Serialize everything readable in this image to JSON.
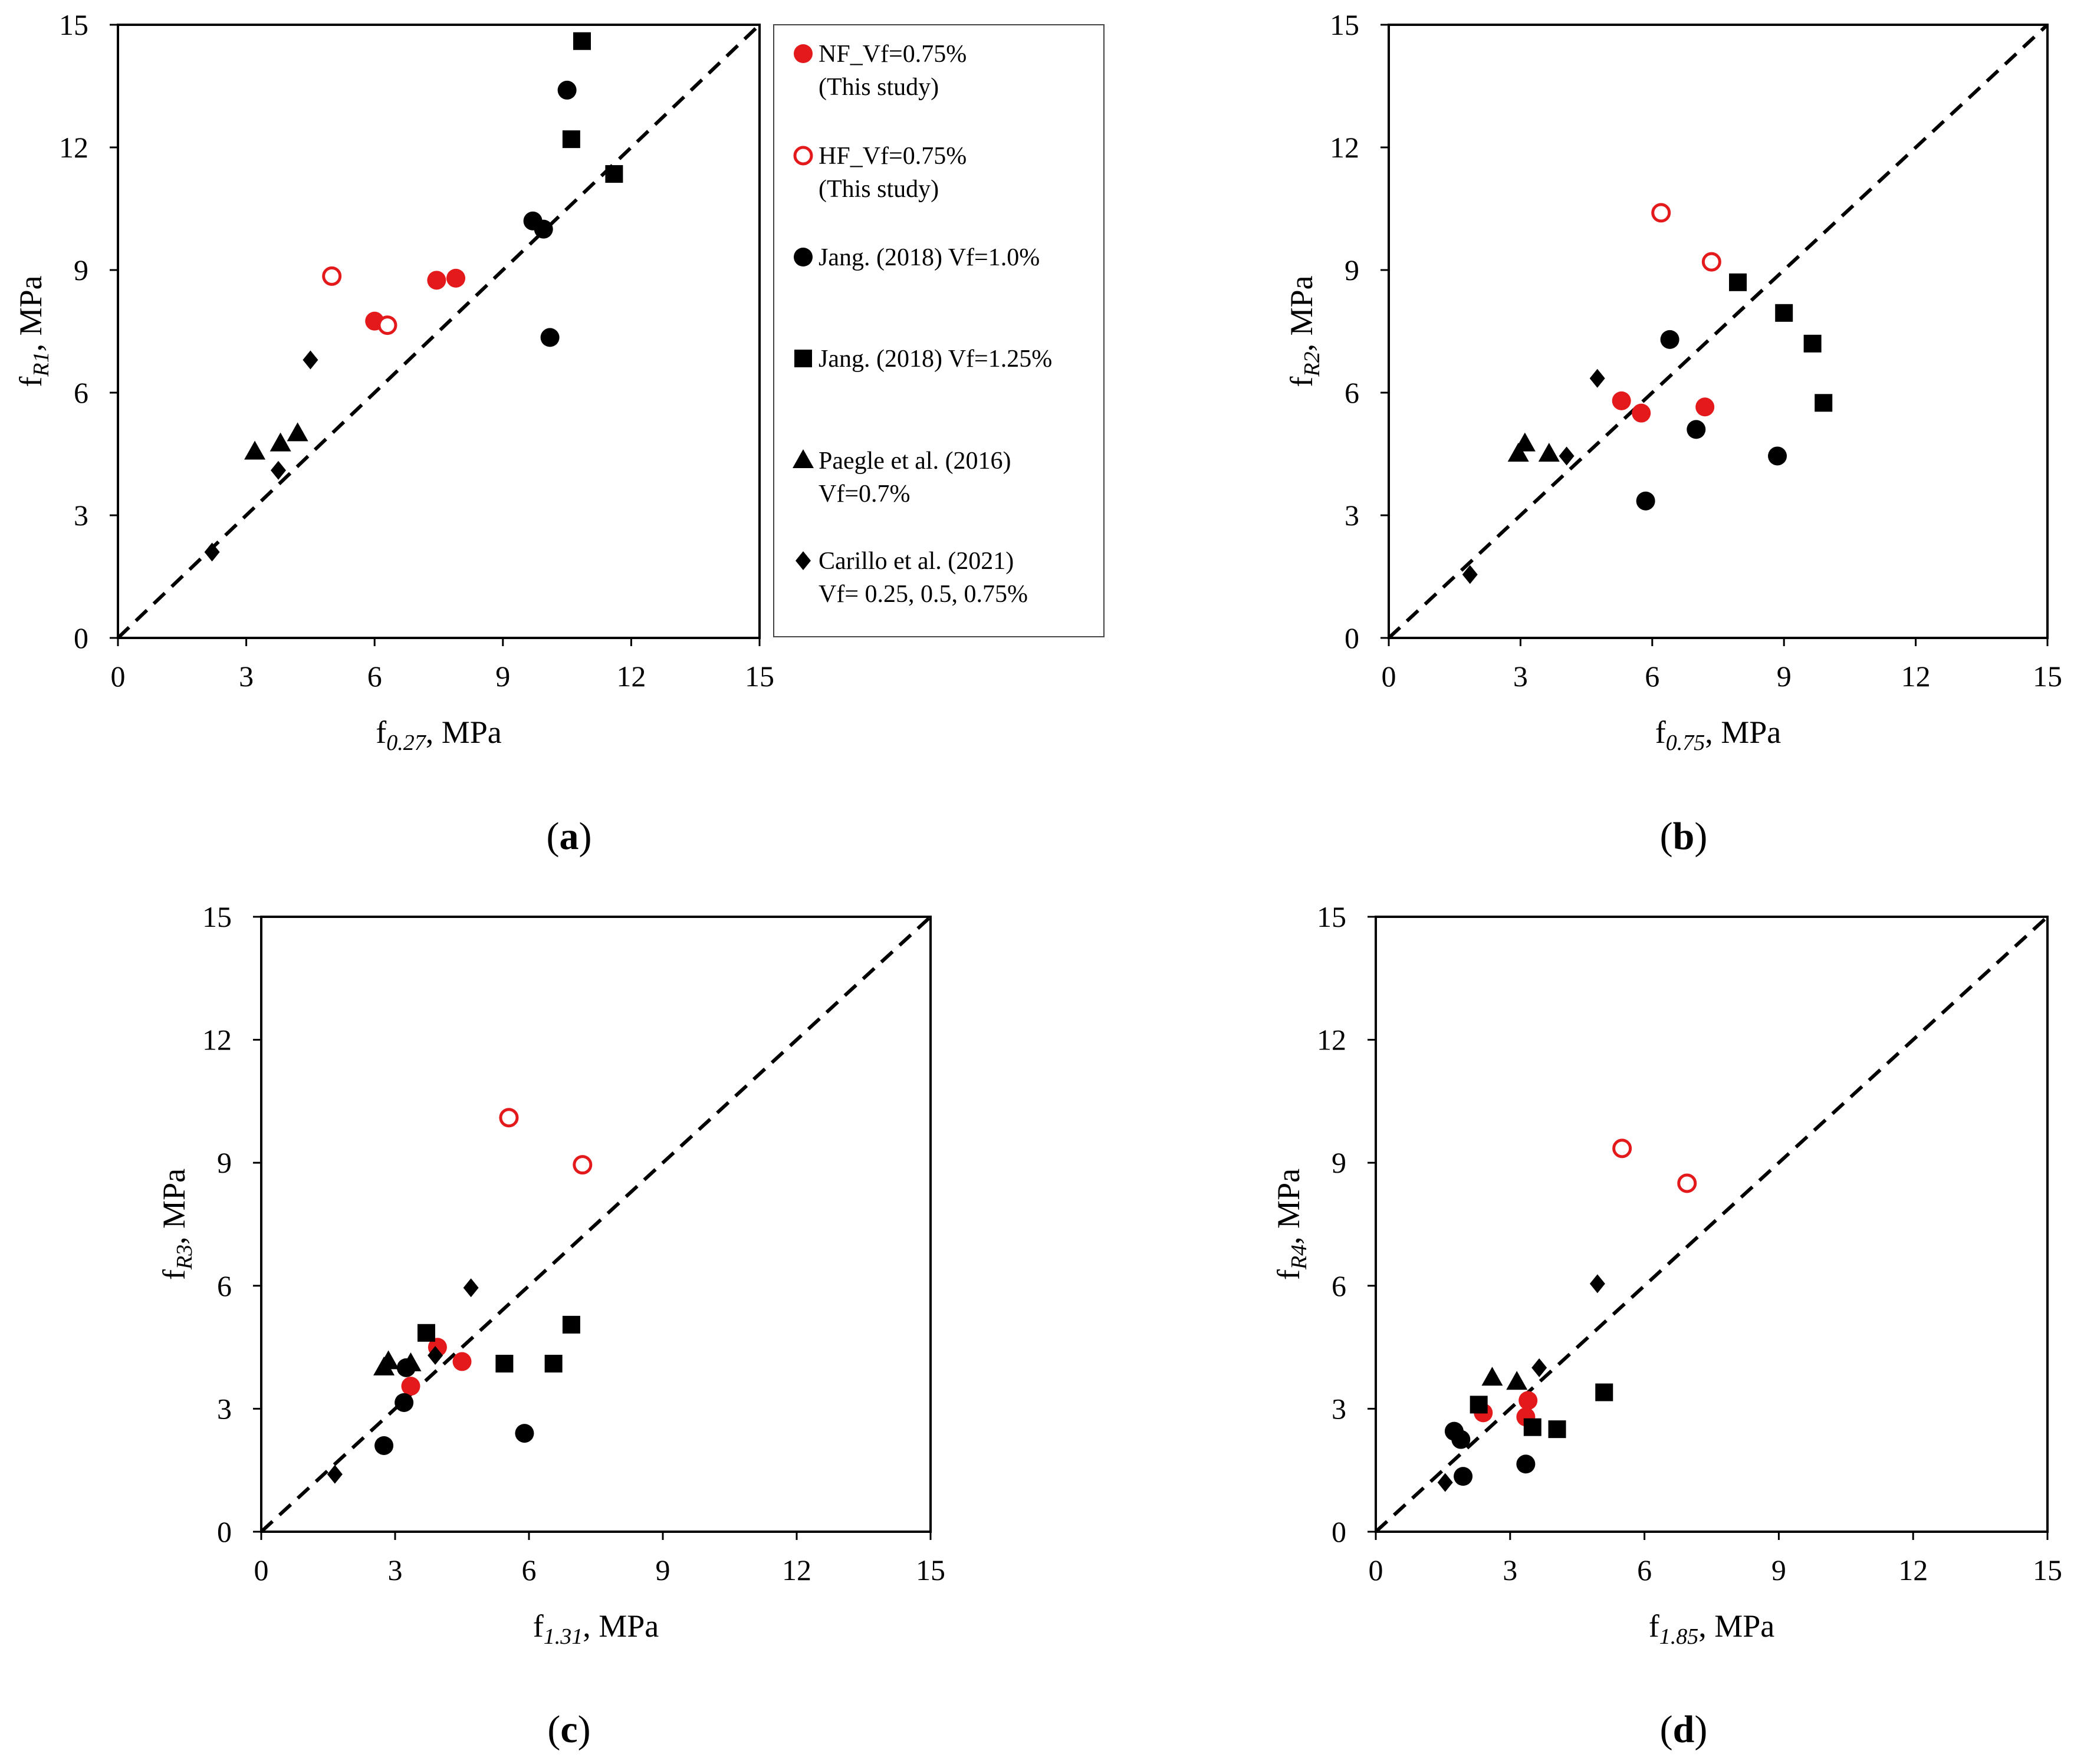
{
  "colors": {
    "nf": "#e3191b",
    "hf": "#e3191b",
    "black": "#000000"
  },
  "legend": [
    {
      "key": "nf",
      "marker": "circle-filled-red",
      "lines": [
        "NF_Vf=0.75%",
        "(This study)"
      ]
    },
    {
      "key": "hf",
      "marker": "circle-open-red",
      "lines": [
        "HF_Vf=0.75%",
        "(This study)"
      ]
    },
    {
      "key": "j10",
      "marker": "circle-filled-black",
      "lines": [
        "Jang. (2018) Vf=1.0%"
      ]
    },
    {
      "key": "j125",
      "marker": "square-filled-black",
      "lines": [
        "Jang. (2018) Vf=1.25%"
      ]
    },
    {
      "key": "pae",
      "marker": "triangle-filled-black",
      "lines": [
        "Paegle et al. (2016)",
        "Vf=0.7%"
      ]
    },
    {
      "key": "car",
      "marker": "diamond-filled-black",
      "lines": [
        "Carillo et al. (2021)",
        "Vf= 0.25, 0.5, 0.75%"
      ]
    }
  ],
  "chart_data": [
    {
      "type": "scatter",
      "panel_label": [
        "(",
        "a",
        ")"
      ],
      "xlabel": {
        "main": "f",
        "sub": "0.27",
        "rest": ", MPa"
      },
      "ylabel": {
        "main": "f",
        "sub": "R1",
        "rest": ", MPa"
      },
      "xlim": [
        0,
        15
      ],
      "ylim": [
        0,
        15
      ],
      "xticks": [
        "0",
        "3",
        "6",
        "9",
        "12",
        "15"
      ],
      "yticks": [
        "0",
        "3",
        "6",
        "9",
        "12",
        "15"
      ],
      "reference_line": "y = x (dashed)",
      "series": [
        {
          "key": "nf",
          "points": [
            [
              6.0,
              7.75
            ],
            [
              7.45,
              8.75
            ],
            [
              7.9,
              8.8
            ]
          ]
        },
        {
          "key": "hf",
          "points": [
            [
              5.0,
              8.85
            ],
            [
              6.3,
              7.65
            ]
          ]
        },
        {
          "key": "j10",
          "points": [
            [
              10.5,
              13.4
            ],
            [
              9.7,
              10.2
            ],
            [
              9.95,
              10.0
            ],
            [
              10.1,
              7.35
            ]
          ]
        },
        {
          "key": "j125",
          "points": [
            [
              10.85,
              14.6
            ],
            [
              10.6,
              12.2
            ],
            [
              11.6,
              11.35
            ]
          ]
        },
        {
          "key": "pae",
          "points": [
            [
              3.2,
              4.55
            ],
            [
              3.8,
              4.75
            ],
            [
              4.2,
              5.0
            ]
          ]
        },
        {
          "key": "car",
          "points": [
            [
              2.2,
              2.1
            ],
            [
              3.75,
              4.1
            ],
            [
              4.5,
              6.8
            ]
          ]
        }
      ]
    },
    {
      "type": "scatter",
      "panel_label": [
        "(",
        "b",
        ")"
      ],
      "xlabel": {
        "main": "f",
        "sub": "0.75",
        "rest": ", MPa"
      },
      "ylabel": {
        "main": "f",
        "sub": "R2",
        "rest": ", MPa"
      },
      "xlim": [
        0,
        15
      ],
      "ylim": [
        0,
        15
      ],
      "xticks": [
        "0",
        "3",
        "6",
        "9",
        "12",
        "15"
      ],
      "yticks": [
        "0",
        "3",
        "6",
        "9",
        "12",
        "15"
      ],
      "reference_line": "y = x (dashed)",
      "series": [
        {
          "key": "nf",
          "points": [
            [
              5.3,
              5.8
            ],
            [
              5.75,
              5.5
            ],
            [
              7.2,
              5.65
            ]
          ]
        },
        {
          "key": "hf",
          "points": [
            [
              6.2,
              10.4
            ],
            [
              7.35,
              9.2
            ]
          ]
        },
        {
          "key": "j10",
          "points": [
            [
              6.4,
              7.3
            ],
            [
              7.0,
              5.1
            ],
            [
              5.85,
              3.35
            ],
            [
              8.85,
              4.45
            ]
          ]
        },
        {
          "key": "j125",
          "points": [
            [
              7.95,
              8.7
            ],
            [
              9.0,
              7.95
            ],
            [
              9.65,
              7.2
            ],
            [
              9.9,
              5.75
            ]
          ]
        },
        {
          "key": "pae",
          "points": [
            [
              2.95,
              4.5
            ],
            [
              3.1,
              4.75
            ],
            [
              3.65,
              4.5
            ]
          ]
        },
        {
          "key": "car",
          "points": [
            [
              1.85,
              1.55
            ],
            [
              4.05,
              4.45
            ],
            [
              4.75,
              6.35
            ]
          ]
        }
      ]
    },
    {
      "type": "scatter",
      "panel_label": [
        "(",
        "c",
        ")"
      ],
      "xlabel": {
        "main": "f",
        "sub": "1.31",
        "rest": ", MPa"
      },
      "ylabel": {
        "main": "f",
        "sub": "R3",
        "rest": ", MPa"
      },
      "xlim": [
        0,
        15
      ],
      "ylim": [
        0,
        15
      ],
      "xticks": [
        "0",
        "3",
        "6",
        "9",
        "12",
        "15"
      ],
      "yticks": [
        "0",
        "3",
        "6",
        "9",
        "12",
        "15"
      ],
      "reference_line": "y = x (dashed)",
      "series": [
        {
          "key": "nf",
          "points": [
            [
              3.35,
              3.55
            ],
            [
              3.95,
              4.5
            ],
            [
              4.5,
              4.15
            ]
          ]
        },
        {
          "key": "hf",
          "points": [
            [
              5.55,
              10.1
            ],
            [
              7.2,
              8.95
            ]
          ]
        },
        {
          "key": "j10",
          "points": [
            [
              3.25,
              4.0
            ],
            [
              3.2,
              3.15
            ],
            [
              2.75,
              2.1
            ],
            [
              5.9,
              2.4
            ]
          ]
        },
        {
          "key": "j125",
          "points": [
            [
              3.7,
              4.85
            ],
            [
              5.45,
              4.1
            ],
            [
              6.55,
              4.1
            ],
            [
              6.95,
              5.05
            ]
          ]
        },
        {
          "key": "pae",
          "points": [
            [
              2.75,
              4.0
            ],
            [
              2.85,
              4.15
            ],
            [
              3.35,
              4.1
            ]
          ]
        },
        {
          "key": "car",
          "points": [
            [
              1.65,
              1.4
            ],
            [
              3.9,
              4.3
            ],
            [
              4.7,
              5.95
            ]
          ]
        }
      ]
    },
    {
      "type": "scatter",
      "panel_label": [
        "(",
        "d",
        ")"
      ],
      "xlabel": {
        "main": "f",
        "sub": "1.85",
        "rest": ", MPa"
      },
      "ylabel": {
        "main": "f",
        "sub": "R4",
        "rest": ", MPa"
      },
      "xlim": [
        0,
        15
      ],
      "ylim": [
        0,
        15
      ],
      "xticks": [
        "0",
        "3",
        "6",
        "9",
        "12",
        "15"
      ],
      "yticks": [
        "0",
        "3",
        "6",
        "9",
        "12",
        "15"
      ],
      "reference_line": "y = x (dashed)",
      "series": [
        {
          "key": "nf",
          "points": [
            [
              2.4,
              2.9
            ],
            [
              3.35,
              2.8
            ],
            [
              3.4,
              3.2
            ]
          ]
        },
        {
          "key": "hf",
          "points": [
            [
              5.5,
              9.35
            ],
            [
              6.95,
              8.5
            ]
          ]
        },
        {
          "key": "j10",
          "points": [
            [
              1.75,
              2.45
            ],
            [
              1.9,
              2.25
            ],
            [
              1.95,
              1.35
            ],
            [
              3.35,
              1.65
            ]
          ]
        },
        {
          "key": "j125",
          "points": [
            [
              2.3,
              3.1
            ],
            [
              3.5,
              2.55
            ],
            [
              4.05,
              2.5
            ],
            [
              5.1,
              3.4
            ]
          ]
        },
        {
          "key": "pae",
          "points": [
            [
              2.6,
              3.75
            ],
            [
              3.15,
              3.65
            ]
          ]
        },
        {
          "key": "car",
          "points": [
            [
              1.55,
              1.2
            ],
            [
              3.65,
              4.0
            ],
            [
              4.95,
              6.05
            ]
          ]
        }
      ]
    }
  ]
}
